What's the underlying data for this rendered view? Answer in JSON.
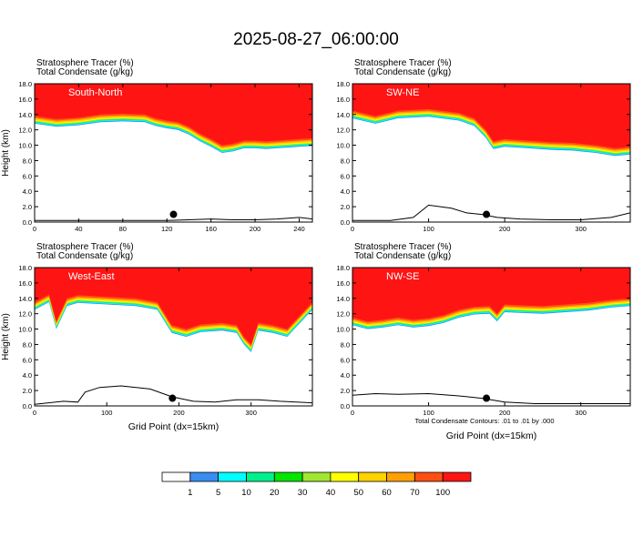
{
  "title": "2025-08-27_06:00:00",
  "footnote": "Total Condensate Contours: .01 to .01 by .000",
  "colors": [
    "#ffffff",
    "#3b8cf0",
    "#00ffff",
    "#00f08c",
    "#00e600",
    "#a0e632",
    "#ffff00",
    "#ffd200",
    "#ffa000",
    "#ff5014",
    "#ff1414"
  ],
  "contour_color": "#000000",
  "chart_data": [
    {
      "type": "heatmap",
      "panel": "South-North",
      "subtitle_line1": "Stratosphere Tracer   (%)",
      "subtitle_line2": "Total Condensate   (g/kg)",
      "ylabel": "Height (km)",
      "xlabel": "",
      "xlim": [
        0,
        252
      ],
      "ylim": [
        0,
        18
      ],
      "xticks": [
        0,
        40,
        80,
        120,
        160,
        200,
        240
      ],
      "yticks": [
        "0.0",
        "2.0",
        "4.0",
        "6.0",
        "8.0",
        "10.0",
        "12.0",
        "14.0",
        "16.0",
        "18.0"
      ],
      "tropopause_x": [
        0,
        20,
        40,
        60,
        80,
        100,
        110,
        120,
        130,
        140,
        150,
        160,
        170,
        180,
        190,
        200,
        210,
        220,
        230,
        240,
        252
      ],
      "tropopause_y": [
        13.8,
        13.4,
        13.6,
        14.0,
        14.1,
        14.0,
        13.5,
        13.2,
        13.0,
        12.4,
        11.5,
        10.8,
        10.0,
        10.2,
        10.6,
        10.6,
        10.5,
        10.6,
        10.7,
        10.8,
        10.9
      ],
      "terrain_x": [
        0,
        20,
        40,
        60,
        80,
        100,
        120,
        140,
        160,
        180,
        200,
        220,
        240,
        252
      ],
      "terrain_y": [
        0.2,
        0.2,
        0.2,
        0.2,
        0.2,
        0.2,
        0.2,
        0.3,
        0.4,
        0.3,
        0.3,
        0.4,
        0.6,
        0.4
      ],
      "marker": [
        126,
        1.0
      ]
    },
    {
      "type": "heatmap",
      "panel": "SW-NE",
      "subtitle_line1": "Stratosphere Tracer   (%)",
      "subtitle_line2": "Total Condensate   (g/kg)",
      "ylabel": "",
      "xlabel": "",
      "xlim": [
        0,
        365
      ],
      "ylim": [
        0,
        18
      ],
      "xticks": [
        0,
        100,
        200,
        300
      ],
      "yticks": [
        "0.0",
        "2.0",
        "4.0",
        "6.0",
        "8.0",
        "10.0",
        "12.0",
        "14.0",
        "16.0",
        "18.0"
      ],
      "tropopause_x": [
        0,
        30,
        60,
        100,
        140,
        160,
        175,
        185,
        200,
        230,
        260,
        290,
        320,
        345,
        365
      ],
      "tropopause_y": [
        14.5,
        13.8,
        14.5,
        14.7,
        14.2,
        13.5,
        12.0,
        10.5,
        10.8,
        10.6,
        10.4,
        10.3,
        10.0,
        9.6,
        9.8
      ],
      "terrain_x": [
        0,
        50,
        80,
        100,
        130,
        150,
        170,
        190,
        220,
        260,
        300,
        340,
        365
      ],
      "terrain_y": [
        0.2,
        0.2,
        0.6,
        2.2,
        1.8,
        1.2,
        1.0,
        0.6,
        0.4,
        0.3,
        0.3,
        0.6,
        1.2
      ],
      "marker": [
        176,
        1.0
      ]
    },
    {
      "type": "heatmap",
      "panel": "West-East",
      "subtitle_line1": "Stratosphere Tracer   (%)",
      "subtitle_line2": "Total Condensate   (g/kg)",
      "ylabel": "Height (km)",
      "xlabel": "Grid Point (dx=15km)",
      "xlim": [
        0,
        385
      ],
      "ylim": [
        0,
        18
      ],
      "xticks": [
        0,
        100,
        200,
        300
      ],
      "yticks": [
        "0.0",
        "2.0",
        "4.0",
        "6.0",
        "8.0",
        "10.0",
        "12.0",
        "14.0",
        "16.0",
        "18.0"
      ],
      "tropopause_x": [
        0,
        20,
        30,
        45,
        60,
        100,
        140,
        170,
        190,
        210,
        230,
        260,
        280,
        290,
        300,
        310,
        330,
        350,
        385
      ],
      "tropopause_y": [
        13.5,
        14.5,
        11.0,
        14.0,
        14.4,
        14.2,
        14.0,
        13.5,
        10.5,
        10.0,
        10.6,
        10.8,
        10.5,
        9.0,
        8.0,
        10.8,
        10.5,
        10.0,
        13.5
      ],
      "terrain_x": [
        0,
        40,
        60,
        70,
        90,
        120,
        160,
        190,
        220,
        250,
        280,
        310,
        340,
        385
      ],
      "terrain_y": [
        0.2,
        0.6,
        0.5,
        1.8,
        2.4,
        2.6,
        2.2,
        1.2,
        0.6,
        0.5,
        0.8,
        0.8,
        0.6,
        0.4
      ],
      "marker": [
        191,
        1.0
      ]
    },
    {
      "type": "heatmap",
      "panel": "NW-SE",
      "subtitle_line1": "Stratosphere Tracer   (%)",
      "subtitle_line2": "Total Condensate   (g/kg)",
      "ylabel": "",
      "xlabel": "Grid Point (dx=15km)",
      "xlim": [
        0,
        365
      ],
      "ylim": [
        0,
        18
      ],
      "xticks": [
        0,
        100,
        200,
        300
      ],
      "yticks": [
        "0.0",
        "2.0",
        "4.0",
        "6.0",
        "8.0",
        "10.0",
        "12.0",
        "14.0",
        "16.0",
        "18.0"
      ],
      "tropopause_x": [
        0,
        20,
        40,
        60,
        80,
        100,
        120,
        140,
        160,
        180,
        190,
        200,
        220,
        250,
        280,
        310,
        340,
        365
      ],
      "tropopause_y": [
        11.5,
        11.0,
        11.2,
        11.5,
        11.2,
        11.4,
        11.8,
        12.5,
        12.9,
        13.0,
        12.0,
        13.2,
        13.1,
        13.0,
        13.2,
        13.4,
        13.8,
        14.0
      ],
      "terrain_x": [
        0,
        30,
        60,
        100,
        140,
        170,
        200,
        240,
        280,
        320,
        365
      ],
      "terrain_y": [
        1.4,
        1.6,
        1.5,
        1.6,
        1.3,
        1.0,
        0.5,
        0.3,
        0.3,
        0.3,
        0.3
      ],
      "marker": [
        176,
        1.0
      ]
    }
  ],
  "legend": {
    "labels": [
      "1",
      "5",
      "10",
      "20",
      "30",
      "40",
      "50",
      "60",
      "70",
      "100"
    ]
  }
}
